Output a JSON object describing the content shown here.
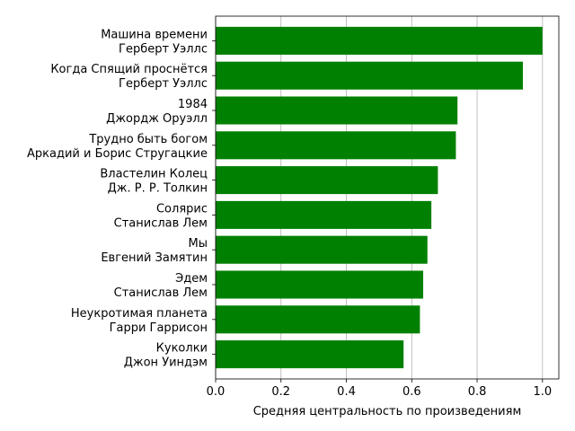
{
  "chart_data": {
    "type": "bar",
    "orientation": "horizontal",
    "title": "",
    "xlabel": "Средняя центральность по произведениям",
    "ylabel": "",
    "xlim": [
      0,
      1.05
    ],
    "xticks": [
      "0.0",
      "0.2",
      "0.4",
      "0.6",
      "0.8",
      "1.0"
    ],
    "grid": "x",
    "bar_color": "#008000",
    "categories": [
      {
        "title": "Машина времени",
        "author": "Герберт Уэллс"
      },
      {
        "title": "Когда Спящий проснётся",
        "author": "Герберт Уэллс"
      },
      {
        "title": "1984",
        "author": "Джордж Оруэлл"
      },
      {
        "title": "Трудно быть богом",
        "author": "Аркадий и Борис Стругацкие"
      },
      {
        "title": "Властелин Колец",
        "author": "Дж. Р. Р. Толкин"
      },
      {
        "title": "Солярис",
        "author": "Станислав Лем"
      },
      {
        "title": "Мы",
        "author": "Евгений Замятин"
      },
      {
        "title": "Эдем",
        "author": "Станислав Лем"
      },
      {
        "title": "Неукротимая планета",
        "author": "Гарри Гаррисон"
      },
      {
        "title": "Куколки",
        "author": "Джон Уиндэм"
      }
    ],
    "values": [
      1.0,
      0.94,
      0.74,
      0.735,
      0.68,
      0.66,
      0.648,
      0.635,
      0.625,
      0.575
    ]
  }
}
